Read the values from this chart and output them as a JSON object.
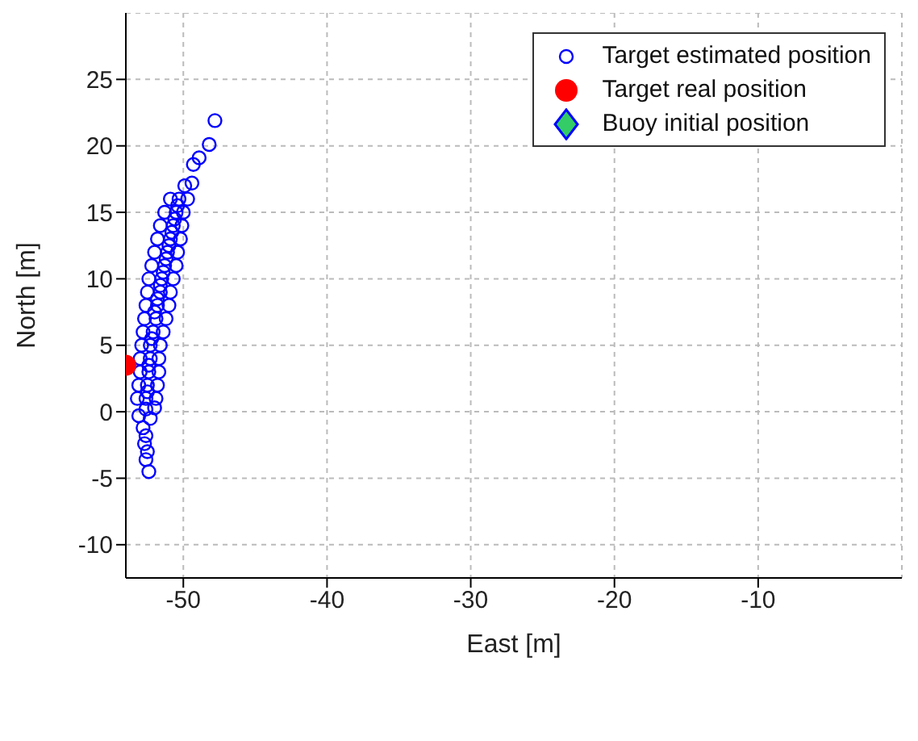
{
  "chart_data": {
    "type": "scatter",
    "xlabel": "East [m]",
    "ylabel": "North [m]",
    "xlim": [
      -54,
      0
    ],
    "ylim": [
      -12.5,
      30
    ],
    "xticks": [
      -50,
      -40,
      -30,
      -20,
      -10
    ],
    "yticks": [
      -10,
      -5,
      0,
      5,
      10,
      15,
      20,
      25
    ],
    "grid": true,
    "legend": "top right",
    "series": [
      {
        "name": "Target estimated position",
        "color": "#0000ff",
        "marker": "circle",
        "x": [
          -52.4,
          -52.6,
          -52.5,
          -52.7,
          -52.6,
          -52.8,
          -52.3,
          -53.1,
          -52.6,
          -52.0,
          -53.2,
          -52.6,
          -51.9,
          -53.1,
          -52.5,
          -51.8,
          -53.0,
          -52.4,
          -51.7,
          -53.0,
          -52.3,
          -51.7,
          -52.9,
          -52.3,
          -51.6,
          -52.8,
          -52.1,
          -51.4,
          -52.7,
          -51.9,
          -51.2,
          -52.6,
          -51.8,
          -51.0,
          -52.5,
          -51.6,
          -50.9,
          -52.4,
          -51.5,
          -50.7,
          -52.2,
          -51.3,
          -50.5,
          -52.0,
          -51.1,
          -50.4,
          -51.8,
          -50.9,
          -50.2,
          -51.6,
          -50.7,
          -50.1,
          -51.3,
          -50.5,
          -50.0,
          -50.9,
          -50.3,
          -49.7,
          -52.5,
          -52.4,
          -52.2,
          -52.0,
          -51.8,
          -51.6,
          -51.4,
          -51.2,
          -51.0,
          -50.8,
          -50.6,
          -50.4,
          -49.9,
          -49.4,
          -49.3,
          -48.9,
          -48.2,
          -47.8
        ],
        "values": [
          -4.5,
          -3.6,
          -3.0,
          -2.4,
          -1.8,
          -1.2,
          -0.5,
          -0.3,
          0.2,
          0.3,
          1,
          1,
          1,
          2,
          2,
          2,
          3,
          3,
          3,
          4,
          4,
          4,
          5,
          5,
          5,
          6,
          6,
          6,
          7,
          7,
          7,
          8,
          8,
          8,
          9,
          9,
          9,
          10,
          10,
          10,
          11,
          11,
          11,
          12,
          12,
          12,
          13,
          13,
          13,
          14,
          14,
          14,
          15,
          15,
          15,
          16,
          16,
          16,
          1.5,
          3.5,
          5.5,
          7.5,
          8.5,
          9.5,
          10.5,
          11.5,
          12.5,
          13.5,
          14.5,
          15.5,
          17.0,
          17.2,
          18.6,
          19.1,
          20.1,
          21.9
        ]
      },
      {
        "name": "Target real position",
        "color": "#ff0000",
        "marker": "circle",
        "x": [
          -54
        ],
        "values": [
          3.5
        ]
      },
      {
        "name": "Buoy initial position",
        "color": "#33cc66",
        "marker": "diamond"
      }
    ]
  }
}
